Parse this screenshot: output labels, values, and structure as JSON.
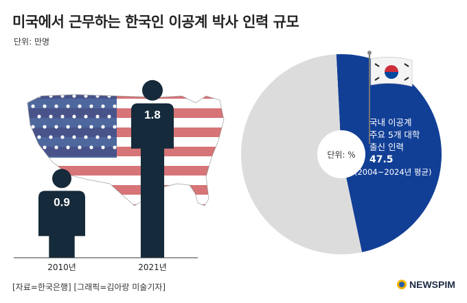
{
  "title": "미국에서 근무하는 한국인 이공계 박사 인력 규모",
  "unit_left": "단위: 만명",
  "source": "[자료=한국은행] [그래픽=김아랑 미술기자]",
  "logo_text": "NEWSPIM",
  "colors": {
    "person": "#152a3a",
    "pie_blue": "#123f96",
    "pie_gray": "#dcdcdc",
    "flag_red": "#c8454a",
    "flag_blue": "#2f4e8d"
  },
  "chart_data": [
    {
      "type": "bar",
      "categories": [
        "2010년",
        "2021년"
      ],
      "values": [
        0.9,
        1.8
      ],
      "value_labels": [
        "0.9",
        "1.8"
      ],
      "ylabel": "단위: 만명",
      "style": "pictogram-person",
      "ylim": [
        0,
        2
      ]
    },
    {
      "type": "pie",
      "unit": "단위: %",
      "slices": [
        {
          "label": "국내 이공계 주요 5개 대학 출신 인력",
          "value": 47.5,
          "color": "#123f96"
        },
        {
          "label": "",
          "value": 52.5,
          "color": "#dcdcdc"
        }
      ],
      "highlight_lines": [
        "국내 이공계",
        "주요 5개 대학",
        "출신 인력"
      ],
      "highlight_value": "47.5",
      "highlight_period": "(2004~2024년 평균)"
    }
  ]
}
